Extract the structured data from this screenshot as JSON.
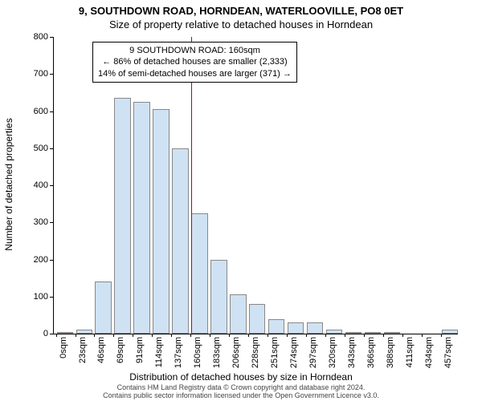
{
  "title_line1": "9, SOUTHDOWN ROAD, HORNDEAN, WATERLOOVILLE, PO8 0ET",
  "title_line2": "Size of property relative to detached houses in Horndean",
  "y_label": "Number of detached properties",
  "x_label": "Distribution of detached houses by size in Horndean",
  "footer_line1": "Contains HM Land Registry data © Crown copyright and database right 2024.",
  "footer_line2": "Contains public sector information licensed under the Open Government Licence v3.0.",
  "chart": {
    "type": "histogram",
    "xlim": [
      0,
      470
    ],
    "ylim": [
      0,
      800
    ],
    "ytick_step": 100,
    "xtick_step": 23,
    "xtick_suffix": "sqm",
    "bar_fill": "#cfe2f3",
    "bar_stroke": "#888888",
    "background_color": "#ffffff",
    "reference_line": {
      "x": 160,
      "color": "#cc0000"
    },
    "categories": [
      0,
      23,
      46,
      69,
      91,
      114,
      137,
      160,
      183,
      206,
      228,
      251,
      274,
      297,
      320,
      343,
      366,
      388,
      411,
      434,
      457
    ],
    "values": [
      5,
      10,
      140,
      635,
      625,
      605,
      500,
      325,
      200,
      105,
      80,
      40,
      30,
      30,
      10,
      5,
      5,
      5,
      0,
      0,
      10
    ],
    "annotation": {
      "line1": "9 SOUTHDOWN ROAD: 160sqm",
      "line2": "← 86% of detached houses are smaller (2,333)",
      "line3": "14% of semi-detached houses are larger (371) →"
    }
  }
}
